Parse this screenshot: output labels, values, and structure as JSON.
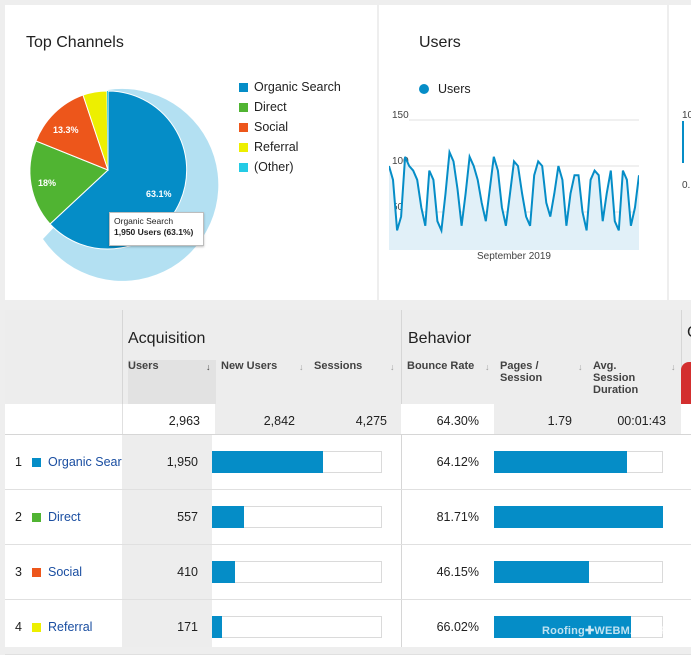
{
  "top_channels": {
    "title": "Top Channels",
    "legend": [
      {
        "label": "Organic Search",
        "color": "#058dc7"
      },
      {
        "label": "Direct",
        "color": "#50b432"
      },
      {
        "label": "Social",
        "color": "#ed561b"
      },
      {
        "label": "Referral",
        "color": "#edef00"
      },
      {
        "label": "(Other)",
        "color": "#24cbe5"
      }
    ],
    "slice_labels": {
      "organic": "63.1%",
      "direct": "18%",
      "social": "13.3%"
    },
    "tooltip": {
      "line1": "Organic Search",
      "line2": "1,950 Users (63.1%)"
    }
  },
  "users_card": {
    "title": "Users",
    "legend_label": "Users",
    "y_ticks": [
      "150",
      "100",
      "50"
    ],
    "x_label": "September 2019"
  },
  "side_card": {
    "tick1": "10",
    "tick2": "0."
  },
  "table": {
    "group_acquisition": "Acquisition",
    "group_behavior": "Behavior",
    "group_next": "C",
    "headers": {
      "users": "Users",
      "new_users": "New Users",
      "sessions": "Sessions",
      "bounce_rate": "Bounce Rate",
      "pages_session_1": "Pages /",
      "pages_session_2": "Session",
      "duration_1": "Avg.",
      "duration_2": "Session",
      "duration_3": "Duration"
    },
    "totals": {
      "users": "2,963",
      "new_users": "2,842",
      "sessions": "4,275",
      "bounce_rate": "64.30%",
      "pages_session": "1.79",
      "duration": "00:01:43"
    },
    "rows": [
      {
        "rank": "1",
        "name": "Organic Sear",
        "color": "#058dc7",
        "users": "1,950",
        "bounce": "64.12%"
      },
      {
        "rank": "2",
        "name": "Direct",
        "color": "#50b432",
        "users": "557",
        "bounce": "81.71%"
      },
      {
        "rank": "3",
        "name": "Social",
        "color": "#ed561b",
        "users": "410",
        "bounce": "46.15%"
      },
      {
        "rank": "4",
        "name": "Referral",
        "color": "#edef00",
        "users": "171",
        "bounce": "66.02%"
      }
    ]
  },
  "watermark": {
    "part1": "Roofing",
    "part2": "WEBMASTERS"
  },
  "chart_data": [
    {
      "type": "pie",
      "title": "Top Channels",
      "categories": [
        "Organic Search",
        "Direct",
        "Social",
        "Referral",
        "(Other)"
      ],
      "values": [
        63.1,
        18,
        13.3,
        5.4,
        0.2
      ],
      "colors": [
        "#058dc7",
        "#50b432",
        "#ed561b",
        "#edef00",
        "#24cbe5"
      ]
    },
    {
      "type": "area",
      "title": "Users",
      "xlabel": "September 2019",
      "ylim": [
        0,
        150
      ],
      "series": [
        {
          "name": "Users",
          "values": [
            100,
            85,
            30,
            45,
            110,
            100,
            95,
            85,
            55,
            35,
            95,
            85,
            40,
            30,
            70,
            115,
            105,
            75,
            35,
            70,
            110,
            100,
            85,
            60,
            40,
            75,
            110,
            95,
            55,
            35,
            70,
            105,
            100,
            70,
            45,
            35,
            90,
            105,
            100,
            60,
            45,
            70,
            100,
            85,
            35,
            70,
            90,
            90,
            50,
            30,
            85,
            95,
            90,
            40,
            70,
            95,
            40,
            30,
            95,
            85,
            35,
            55,
            90
          ]
        }
      ]
    },
    {
      "type": "bar",
      "title": "Users",
      "categories": [
        "Organic Search",
        "Direct",
        "Social",
        "Referral"
      ],
      "values": [
        1950,
        557,
        410,
        171
      ]
    },
    {
      "type": "bar",
      "title": "Bounce Rate",
      "categories": [
        "Organic Search",
        "Direct",
        "Social",
        "Referral"
      ],
      "values": [
        64.12,
        81.71,
        46.15,
        66.02
      ]
    }
  ]
}
